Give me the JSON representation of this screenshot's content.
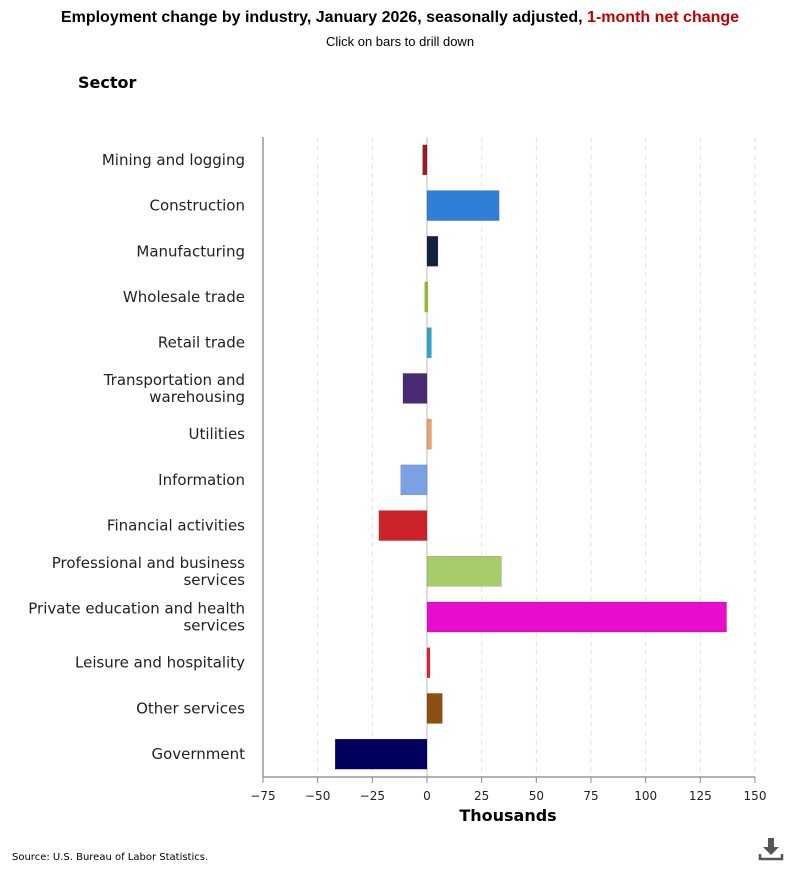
{
  "chart_data": {
    "type": "bar",
    "orientation": "horizontal",
    "title": "Employment change by industry, January 2026, seasonally adjusted,",
    "title_highlight": "1-month net change",
    "subtitle": "Click on bars to drill down",
    "ylabel": "Sector",
    "xlabel": "Thousands",
    "xlim": [
      -75,
      150
    ],
    "xticks": [
      "−75",
      "−50",
      "−25",
      "0",
      "25",
      "50",
      "75",
      "100",
      "125",
      "150"
    ],
    "tick_values": [
      -75,
      -50,
      -25,
      0,
      25,
      50,
      75,
      100,
      125,
      150
    ],
    "grid": "vertical dashed",
    "categories": [
      [
        "Mining and logging"
      ],
      [
        "Construction"
      ],
      [
        "Manufacturing"
      ],
      [
        "Wholesale trade"
      ],
      [
        "Retail trade"
      ],
      [
        "Transportation and",
        "warehousing"
      ],
      [
        "Utilities"
      ],
      [
        "Information"
      ],
      [
        "Financial activities"
      ],
      [
        "Professional and business",
        "services"
      ],
      [
        "Private education and health",
        "services"
      ],
      [
        "Leisure and hospitality"
      ],
      [
        "Other services"
      ],
      [
        "Government"
      ]
    ],
    "values": [
      -2,
      33,
      5,
      -1,
      2,
      -11,
      2,
      -12,
      -22,
      34,
      137,
      1,
      7,
      -42
    ],
    "colors": [
      "#a01c1c",
      "#2f7fd8",
      "#13233f",
      "#8ec21f",
      "#29a9c9",
      "#4b2a74",
      "#f0a060",
      "#79a1e4",
      "#cc2229",
      "#a7cc6b",
      "#e80dcc",
      "#e8232a",
      "#8b4f12",
      "#02005f"
    ]
  },
  "source": "Source: U.S. Bureau of Labor Statistics.",
  "download_icon": "download-icon"
}
